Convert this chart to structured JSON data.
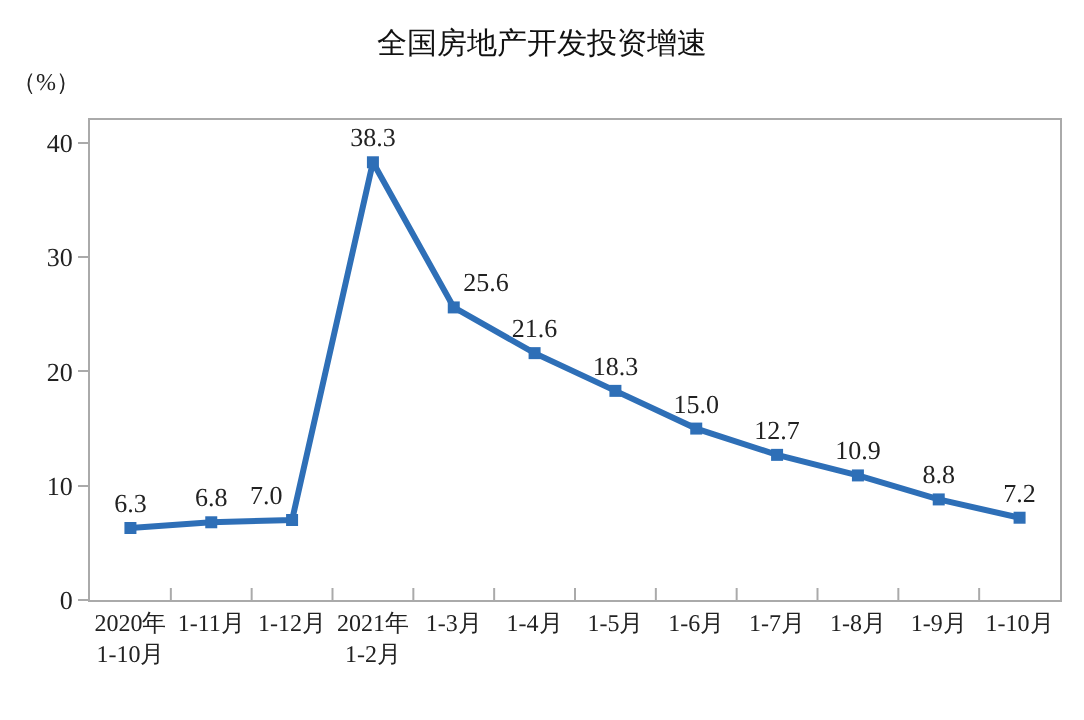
{
  "chart_data": {
    "type": "line",
    "title": "全国房地产开发投资增速",
    "ylabel": "（%）",
    "categories": [
      "2020年\n1-10月",
      "1-11月",
      "1-12月",
      "2021年\n1-2月",
      "1-3月",
      "1-4月",
      "1-5月",
      "1-6月",
      "1-7月",
      "1-8月",
      "1-9月",
      "1-10月"
    ],
    "series": [
      {
        "color": "#2e6fb7",
        "values": [
          6.3,
          6.8,
          7.0,
          38.3,
          25.6,
          21.6,
          18.3,
          15.0,
          12.7,
          10.9,
          8.8,
          7.2
        ],
        "value_labels": [
          "6.3",
          "6.8",
          "7.0",
          "38.3",
          "25.6",
          "21.6",
          "18.3",
          "15.0",
          "12.7",
          "10.9",
          "8.8",
          "7.2"
        ]
      }
    ],
    "ylim": [
      0,
      42
    ],
    "yticks": [
      0,
      10,
      20,
      30,
      40
    ],
    "grid": false,
    "marker": "square",
    "line_style": "solid"
  }
}
